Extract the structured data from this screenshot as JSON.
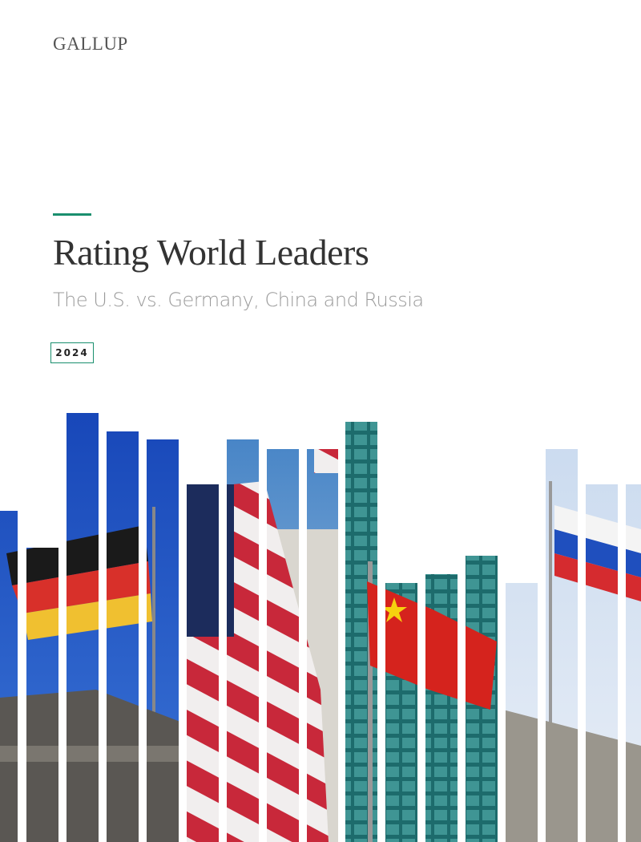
{
  "header": {
    "brand": "GALLUP"
  },
  "cover": {
    "title": "Rating World Leaders",
    "subtitle": "The U.S. vs. Germany, China and Russia",
    "year": "2024"
  }
}
